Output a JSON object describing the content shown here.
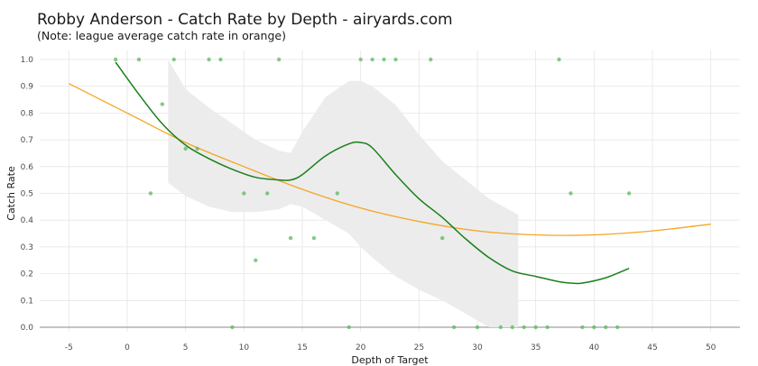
{
  "title": "Robby Anderson - Catch Rate by Depth - airyards.com",
  "subtitle": "(Note: league average catch rate in orange)",
  "colors": {
    "points": "#5cb85c",
    "player_curve": "#1a7f1a",
    "league_curve": "#f5a623",
    "ribbon": "#ececec",
    "grid": "#e5e5e5",
    "baseline": "#888888"
  },
  "chart_data": {
    "type": "scatter",
    "title": "Robby Anderson - Catch Rate by Depth - airyards.com",
    "subtitle": "(Note: league average catch rate in orange)",
    "xlabel": "Depth of Target",
    "ylabel": "Catch Rate",
    "xlim": [
      -7.5,
      52.5
    ],
    "ylim": [
      0,
      1.0
    ],
    "x_ticks": [
      -5,
      0,
      5,
      10,
      15,
      20,
      25,
      30,
      35,
      40,
      45,
      50
    ],
    "y_ticks": [
      0.0,
      0.1,
      0.2,
      0.3,
      0.4,
      0.5,
      0.6,
      0.7,
      0.8,
      0.9,
      1.0
    ],
    "grid": true,
    "points": [
      {
        "x": -1,
        "y": 1.0
      },
      {
        "x": 1,
        "y": 1.0
      },
      {
        "x": 2,
        "y": 0.5
      },
      {
        "x": 3,
        "y": 0.833
      },
      {
        "x": 4,
        "y": 1.0
      },
      {
        "x": 5,
        "y": 0.667
      },
      {
        "x": 6,
        "y": 0.667
      },
      {
        "x": 7,
        "y": 1.0
      },
      {
        "x": 8,
        "y": 1.0
      },
      {
        "x": 9,
        "y": 0.0
      },
      {
        "x": 10,
        "y": 0.5
      },
      {
        "x": 11,
        "y": 0.25
      },
      {
        "x": 12,
        "y": 0.5
      },
      {
        "x": 13,
        "y": 1.0
      },
      {
        "x": 14,
        "y": 0.333
      },
      {
        "x": 16,
        "y": 0.333
      },
      {
        "x": 18,
        "y": 0.5
      },
      {
        "x": 19,
        "y": 0.0
      },
      {
        "x": 20,
        "y": 1.0
      },
      {
        "x": 21,
        "y": 1.0
      },
      {
        "x": 22,
        "y": 1.0
      },
      {
        "x": 23,
        "y": 1.0
      },
      {
        "x": 26,
        "y": 1.0
      },
      {
        "x": 27,
        "y": 0.333
      },
      {
        "x": 28,
        "y": 0.0
      },
      {
        "x": 30,
        "y": 0.0
      },
      {
        "x": 32,
        "y": 0.0
      },
      {
        "x": 33,
        "y": 0.0
      },
      {
        "x": 34,
        "y": 0.0
      },
      {
        "x": 35,
        "y": 0.0
      },
      {
        "x": 36,
        "y": 0.0
      },
      {
        "x": 37,
        "y": 1.0
      },
      {
        "x": 38,
        "y": 0.5
      },
      {
        "x": 39,
        "y": 0.0
      },
      {
        "x": 40,
        "y": 0.0
      },
      {
        "x": 41,
        "y": 0.0
      },
      {
        "x": 42,
        "y": 0.0
      },
      {
        "x": 43,
        "y": 0.5
      }
    ],
    "series": [
      {
        "type": "line",
        "x": [
          -1,
          1,
          3,
          5,
          7,
          9,
          11,
          13,
          14,
          15,
          17,
          19,
          20,
          21,
          23,
          25,
          27,
          29,
          31,
          33,
          35,
          37,
          38,
          39,
          41,
          43
        ],
        "y": [
          0.99,
          0.87,
          0.76,
          0.68,
          0.63,
          0.59,
          0.56,
          0.55,
          0.55,
          0.57,
          0.64,
          0.685,
          0.69,
          0.67,
          0.57,
          0.48,
          0.41,
          0.33,
          0.26,
          0.21,
          0.19,
          0.17,
          0.165,
          0.165,
          0.185,
          0.22
        ]
      },
      {
        "type": "band",
        "x": [
          3.5,
          5,
          7,
          9,
          11,
          13,
          14,
          15,
          17,
          19,
          20,
          21,
          23,
          25,
          27,
          29,
          31,
          33.5
        ],
        "lower": [
          0.54,
          0.49,
          0.45,
          0.43,
          0.43,
          0.44,
          0.46,
          0.45,
          0.4,
          0.35,
          0.3,
          0.26,
          0.19,
          0.14,
          0.1,
          0.05,
          0.0,
          0.0
        ],
        "upper": [
          1.0,
          0.89,
          0.82,
          0.76,
          0.7,
          0.66,
          0.65,
          0.73,
          0.86,
          0.92,
          0.92,
          0.9,
          0.83,
          0.72,
          0.62,
          0.55,
          0.48,
          0.42
        ]
      },
      {
        "type": "line",
        "x": [
          -5,
          0,
          5,
          10,
          15,
          20,
          25,
          30,
          35,
          40,
          45,
          50
        ],
        "y": [
          0.91,
          0.8,
          0.69,
          0.6,
          0.515,
          0.445,
          0.395,
          0.36,
          0.345,
          0.345,
          0.36,
          0.385
        ]
      }
    ]
  }
}
